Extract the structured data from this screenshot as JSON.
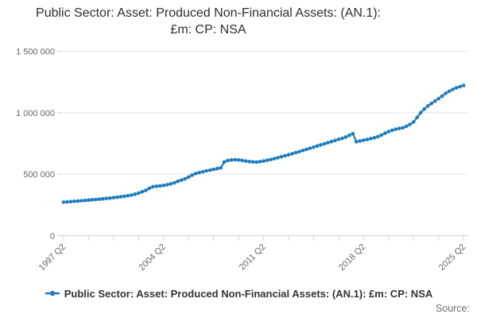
{
  "title": {
    "line1": "Public Sector: Asset: Produced Non-Financial Assets: (AN.1):",
    "line2": "£m: CP: NSA"
  },
  "legend": {
    "label": "Public Sector: Asset: Produced Non-Financial Assets: (AN.1): £m: CP: NSA"
  },
  "source": {
    "label": "Source:"
  },
  "colors": {
    "line": "#1d7cc0",
    "grid": "#e6e6e6",
    "axis": "#c8d4e4",
    "tick_text": "#666666",
    "title_text": "#2e2e2e",
    "legend_text": "#333333",
    "source_text": "#6f6f6f"
  },
  "chart_data": {
    "type": "line",
    "title": "Public Sector: Asset: Produced Non-Financial Assets: (AN.1): £m: CP: NSA",
    "xlabel": "",
    "ylabel": "",
    "x_start": "1997 Q2",
    "x_end": "2025 Q2",
    "frequency": "quarterly",
    "ylim": [
      0,
      1500000
    ],
    "grid": true,
    "legend_position": "bottom",
    "marker": "circle",
    "y_ticks": [
      {
        "value": 0,
        "label": "0"
      },
      {
        "value": 500000,
        "label": "500 000"
      },
      {
        "value": 1000000,
        "label": "1 000 000"
      },
      {
        "value": 1500000,
        "label": "1 500 000"
      }
    ],
    "x_ticks": [
      {
        "q": 0,
        "label": "1997 Q2"
      },
      {
        "q": 7
      },
      {
        "q": 14
      },
      {
        "q": 21
      },
      {
        "q": 28,
        "label": "2004 Q2"
      },
      {
        "q": 35
      },
      {
        "q": 42
      },
      {
        "q": 49
      },
      {
        "q": 56,
        "label": "2011 Q2"
      },
      {
        "q": 63
      },
      {
        "q": 70
      },
      {
        "q": 77
      },
      {
        "q": 84,
        "label": "2018 Q2"
      },
      {
        "q": 91
      },
      {
        "q": 98
      },
      {
        "q": 105
      },
      {
        "q": 112,
        "label": "2025 Q2"
      }
    ],
    "series": [
      {
        "name": "Public Sector: Asset: Produced Non-Financial Assets: (AN.1): £m: CP: NSA",
        "values": [
          272000,
          274500,
          277000,
          279500,
          281500,
          284000,
          286500,
          289000,
          291500,
          294000,
          296500,
          299500,
          302500,
          305500,
          309000,
          312500,
          316500,
          320500,
          325000,
          330000,
          337000,
          346000,
          357000,
          368000,
          385000,
          398000,
          402000,
          404000,
          408000,
          414000,
          421000,
          430000,
          442000,
          452000,
          462000,
          476000,
          492000,
          505000,
          513000,
          520000,
          527000,
          533000,
          539000,
          545000,
          551000,
          599000,
          611000,
          616000,
          618000,
          616000,
          612000,
          607000,
          603000,
          600000,
          598000,
          602000,
          607000,
          613000,
          619000,
          626000,
          634000,
          642000,
          650000,
          658000,
          666000,
          675000,
          684000,
          693000,
          702000,
          711000,
          720000,
          729000,
          738000,
          747000,
          756000,
          765000,
          774000,
          783000,
          792000,
          802000,
          816000,
          830000,
          764000,
          770000,
          776000,
          782000,
          789000,
          796000,
          805000,
          818000,
          833000,
          847000,
          858000,
          866000,
          872000,
          878000,
          890000,
          905000,
          925000,
          962000,
          1000000,
          1030000,
          1055000,
          1075000,
          1095000,
          1115000,
          1135000,
          1158000,
          1175000,
          1190000,
          1203000,
          1212000,
          1222000
        ]
      }
    ]
  }
}
